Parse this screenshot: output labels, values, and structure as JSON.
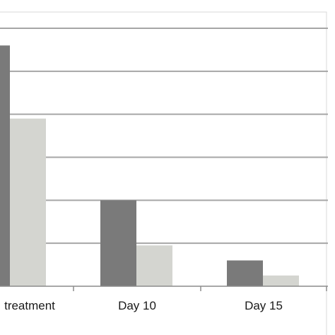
{
  "chart_data": {
    "type": "bar",
    "categories": [
      "treatment",
      "Day 10",
      "Day 15"
    ],
    "series": [
      {
        "values": [
          5.6,
          2.0,
          0.6
        ]
      },
      {
        "values": [
          3.9,
          0.95,
          0.25
        ]
      }
    ],
    "ylim": [
      0,
      6
    ],
    "grid": true,
    "colors": [
      "#7a7a7a",
      "#d4d5d0"
    ],
    "frame_color": "#d9d9d9",
    "grid_color": "#a6a6a6",
    "axis_color": "#8c8c8c"
  }
}
